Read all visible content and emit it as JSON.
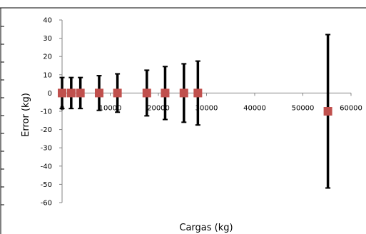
{
  "chart_data": {
    "type": "scatter",
    "title": "",
    "xlabel": "Cargas (kg)",
    "ylabel": "Error (kg)",
    "xlim": [
      0,
      60000
    ],
    "ylim": [
      -60,
      40
    ],
    "x_ticks": [
      0,
      10000,
      20000,
      30000,
      40000,
      50000,
      60000
    ],
    "y_ticks": [
      40,
      30,
      20,
      10,
      0,
      -10,
      -20,
      -30,
      -40,
      -50,
      -60
    ],
    "grid": false,
    "legend": "none",
    "marker": "square",
    "series": [
      {
        "points": [
          {
            "x": 0,
            "y": 0,
            "err": 8.5
          },
          {
            "x": 1900,
            "y": 0,
            "err": 8.5
          },
          {
            "x": 3800,
            "y": 0,
            "err": 8.5
          },
          {
            "x": 7700,
            "y": 0,
            "err": 9.5
          },
          {
            "x": 11500,
            "y": 0,
            "err": 10.5
          },
          {
            "x": 17600,
            "y": 0,
            "err": 12.5
          },
          {
            "x": 21400,
            "y": 0,
            "err": 14.5
          },
          {
            "x": 25300,
            "y": 0,
            "err": 16
          },
          {
            "x": 28200,
            "y": 0,
            "err": 17.5
          },
          {
            "x": 55200,
            "y": -10,
            "err": 42
          }
        ]
      }
    ],
    "colors": {
      "marker": "#c0504d",
      "error_bar": "#000000",
      "axis": "#868686",
      "frame": "#000000"
    }
  }
}
